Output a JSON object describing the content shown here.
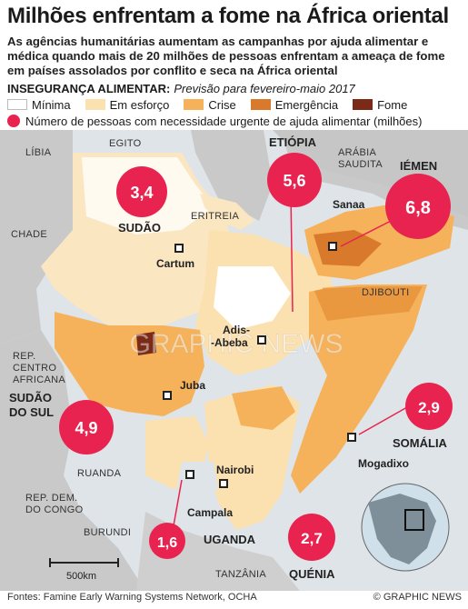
{
  "title": "Milhões enfrentam a fome na África oriental",
  "subtitle": "As agências humanitárias aumentam as campanhas por ajuda alimentar e médica quando mais de 20 milhões de pessoas enfrentam a ameaça de fome em países assolados por conflito e seca na África oriental",
  "legend": {
    "heading": "INSEGURANÇA ALIMENTAR:",
    "forecast": "Previsão para fevereiro-maio 2017",
    "levels": [
      {
        "label": "Mínima",
        "color": "#ffffff"
      },
      {
        "label": "Em esforço",
        "color": "#fbe0b0"
      },
      {
        "label": "Crise",
        "color": "#f5b25b"
      },
      {
        "label": "Emergência",
        "color": "#d9792c"
      },
      {
        "label": "Fome",
        "color": "#7a2a16"
      }
    ],
    "need_label": "Número de pessoas com necessidade urgente de ajuda alimentar (milhões)",
    "need_color": "#e8234f"
  },
  "map": {
    "regions": {
      "libia": "LÍBIA",
      "egito": "EGITO",
      "chade": "CHADE",
      "arabia": "ARÁBIA",
      "saudita": "SAUDITA",
      "eritreia": "ERITREIA",
      "djibouti": "DJIBOUTI",
      "rca1": "REP.",
      "rca2": "CENTRO",
      "rca3": "AFRICANA",
      "ruanda": "RUANDA",
      "rdc1": "REP. DEM.",
      "rdc2": "DO CONGO",
      "burundi": "BURUNDI",
      "tanzania": "TANZÂNIA"
    },
    "cities": {
      "cartum": "Cartum",
      "sanaa": "Sanaa",
      "adis1": "Adis-",
      "adis2": "-Abeba",
      "juba": "Juba",
      "nairobi": "Nairobi",
      "mogadixo": "Mogadixo",
      "campala": "Campala"
    },
    "countries": [
      {
        "name": "SUDÃO",
        "value": "3,4"
      },
      {
        "name": "ETIÓPIA",
        "value": "5,6"
      },
      {
        "name": "IÉMEN",
        "value": "6,8"
      },
      {
        "name1": "SUDÃO",
        "name2": "DO SUL",
        "value": "4,9"
      },
      {
        "name": "SOMÁLIA",
        "value": "2,9"
      },
      {
        "name": "UGANDA",
        "value": "1,6"
      },
      {
        "name": "QUÉNIA",
        "value": "2,7"
      }
    ],
    "scale": "500km",
    "watermark": "GRAPHIC NEWS"
  },
  "footer": {
    "sources": "Fontes: Famine Early Warning Systems Network, OCHA",
    "credit": "© GRAPHIC NEWS"
  }
}
